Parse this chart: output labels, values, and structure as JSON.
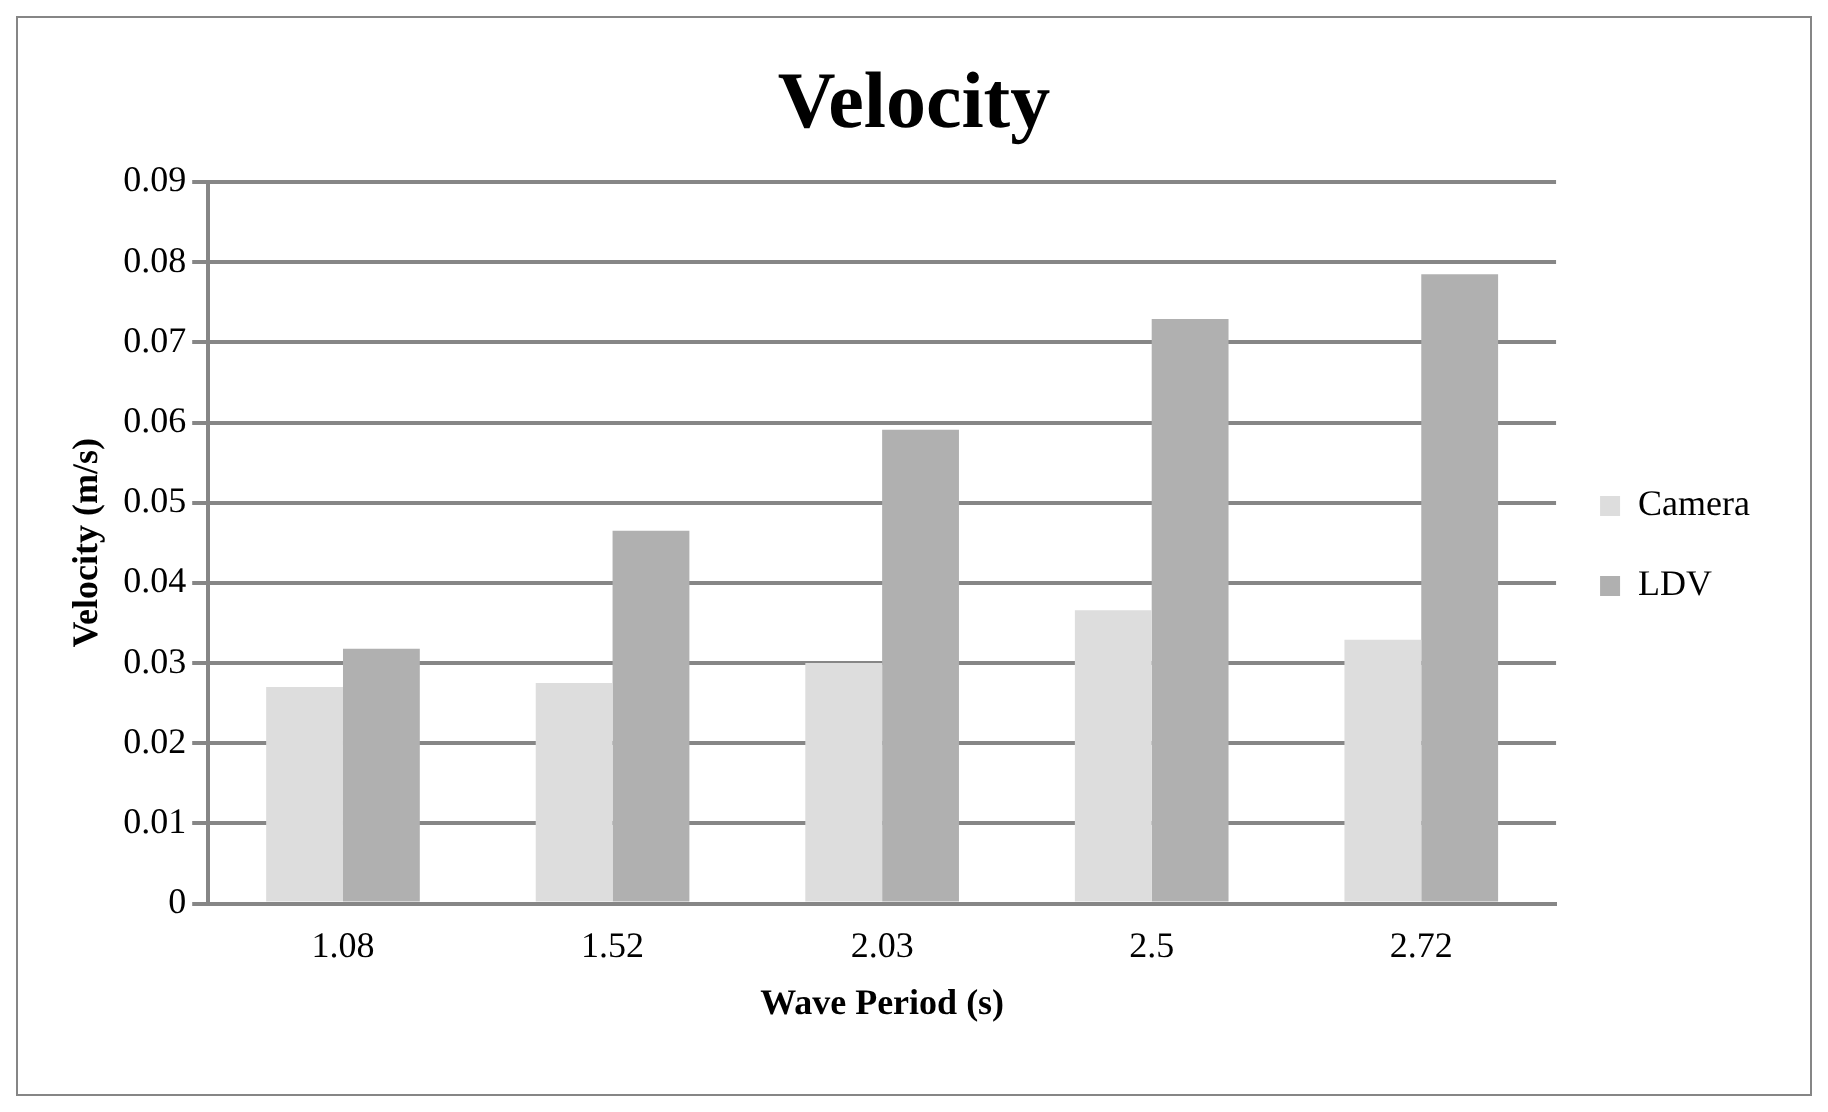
{
  "chart_data": {
    "type": "bar",
    "title": "Velocity",
    "xlabel": "Wave Period (s)",
    "ylabel": "Velocity (m/s)",
    "categories": [
      "1.08",
      "1.52",
      "2.03",
      "2.5",
      "2.72"
    ],
    "series": [
      {
        "name": "Camera",
        "color": "#dddddd",
        "values": [
          0.027,
          0.0275,
          0.03,
          0.0366,
          0.0329
        ]
      },
      {
        "name": "LDV",
        "color": "#b0b0b0",
        "values": [
          0.0318,
          0.0465,
          0.0591,
          0.0729,
          0.0785
        ]
      }
    ],
    "ylim": [
      0,
      0.09
    ],
    "yticks": [
      0,
      0.01,
      0.02,
      0.03,
      0.04,
      0.05,
      0.06,
      0.07,
      0.08,
      0.09
    ],
    "grid": "y",
    "legend": "right"
  }
}
